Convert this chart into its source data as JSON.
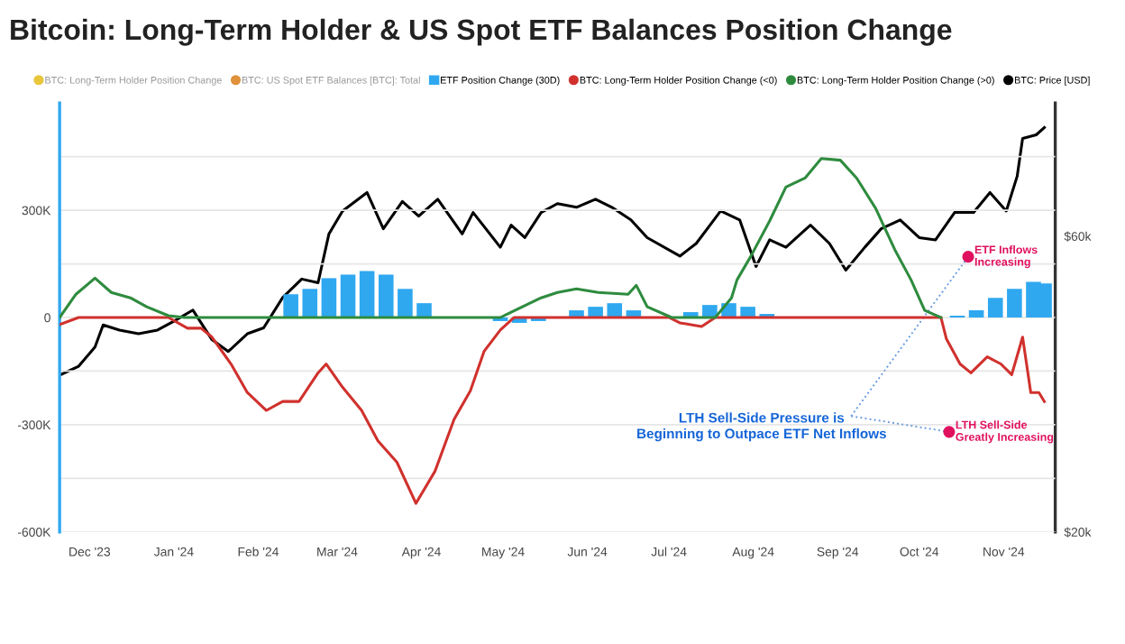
{
  "chart_data": {
    "type": "line",
    "title": "Bitcoin: Long-Term Holder & US Spot ETF Balances Position Change",
    "xlim": [
      "2023-11-20",
      "2024-11-20"
    ],
    "xticks": [
      {
        "value": "2023-12-01",
        "label": "Dec '23"
      },
      {
        "value": "2024-01-01",
        "label": "Jan '24"
      },
      {
        "value": "2024-02-01",
        "label": "Feb '24"
      },
      {
        "value": "2024-03-01",
        "label": "Mar '24"
      },
      {
        "value": "2024-04-01",
        "label": "Apr '24"
      },
      {
        "value": "2024-05-01",
        "label": "May '24"
      },
      {
        "value": "2024-06-01",
        "label": "Jun '24"
      },
      {
        "value": "2024-07-01",
        "label": "Jul '24"
      },
      {
        "value": "2024-08-01",
        "label": "Aug '24"
      },
      {
        "value": "2024-09-01",
        "label": "Sep '24"
      },
      {
        "value": "2024-10-01",
        "label": "Oct '24"
      },
      {
        "value": "2024-11-01",
        "label": "Nov '24"
      }
    ],
    "ylim": [
      -600000,
      600000
    ],
    "yticks": [
      {
        "value": -600000,
        "label": "-600K"
      },
      {
        "value": -450000,
        "label": null
      },
      {
        "value": -300000,
        "label": "-300K"
      },
      {
        "value": -150000,
        "label": null
      },
      {
        "value": 0,
        "label": "0"
      },
      {
        "value": 150000,
        "label": null
      },
      {
        "value": 300000,
        "label": "300K"
      },
      {
        "value": 450000,
        "label": null
      }
    ],
    "y2lim": [
      20000,
      78000
    ],
    "y2ticks": [
      {
        "value": 20000,
        "label": "$20k"
      },
      {
        "value": 60000,
        "label": "$60k"
      }
    ],
    "grid": "y",
    "legend": "top",
    "series": [
      {
        "name": "BTC: Long-Term Holder Position Change",
        "color": "#e8c53a"
      },
      {
        "name": "BTC: US Spot ETF Balances [BTC]: Total",
        "color": "#e0913a"
      },
      {
        "name": "ETF Position Change (30D)",
        "type": "bar",
        "color": "#2fa8f0",
        "x": [
          "2024-02-13",
          "2024-02-20",
          "2024-02-27",
          "2024-03-05",
          "2024-03-12",
          "2024-03-19",
          "2024-03-26",
          "2024-04-02",
          "2024-04-09",
          "2024-04-16",
          "2024-04-23",
          "2024-04-30",
          "2024-05-07",
          "2024-05-14",
          "2024-05-21",
          "2024-05-28",
          "2024-06-04",
          "2024-06-11",
          "2024-06-18",
          "2024-06-25",
          "2024-07-02",
          "2024-07-09",
          "2024-07-16",
          "2024-07-23",
          "2024-07-30",
          "2024-08-06",
          "2024-08-13",
          "2024-08-20",
          "2024-08-27",
          "2024-09-03",
          "2024-09-10",
          "2024-09-17",
          "2024-09-24",
          "2024-10-01",
          "2024-10-08",
          "2024-10-15",
          "2024-10-22",
          "2024-10-29",
          "2024-11-05",
          "2024-11-12",
          "2024-11-16"
        ],
        "values": [
          65000,
          80000,
          110000,
          120000,
          130000,
          120000,
          80000,
          40000,
          null,
          null,
          null,
          -10000,
          -15000,
          -10000,
          null,
          20000,
          30000,
          40000,
          20000,
          null,
          null,
          15000,
          35000,
          40000,
          30000,
          10000,
          null,
          null,
          null,
          null,
          null,
          null,
          null,
          null,
          null,
          5000,
          20000,
          55000,
          80000,
          100000,
          95000
        ]
      },
      {
        "name": "BTC: Long-Term Holder Position Change (<0)",
        "color": "#d0312d",
        "x": [
          "2023-11-20",
          "2023-11-27",
          "2023-12-30",
          "2024-01-06",
          "2024-01-11",
          "2024-01-15",
          "2024-01-22",
          "2024-01-28",
          "2024-02-04",
          "2024-02-10",
          "2024-02-16",
          "2024-02-23",
          "2024-02-26",
          "2024-03-03",
          "2024-03-10",
          "2024-03-16",
          "2024-03-23",
          "2024-03-30",
          "2024-04-06",
          "2024-04-13",
          "2024-04-19",
          "2024-04-24",
          "2024-04-30",
          "2024-05-05",
          "2024-07-01",
          "2024-07-05",
          "2024-07-13",
          "2024-07-18",
          "2024-10-09",
          "2024-10-11",
          "2024-10-16",
          "2024-10-20",
          "2024-10-26",
          "2024-10-31",
          "2024-11-04",
          "2024-11-08",
          "2024-11-11",
          "2024-11-14",
          "2024-11-16"
        ],
        "values": [
          -20000,
          0,
          0,
          -30000,
          -30000,
          -55000,
          -130000,
          -210000,
          -260000,
          -235000,
          -235000,
          -155000,
          -130000,
          -195000,
          -260000,
          -345000,
          -405000,
          -520000,
          -430000,
          -285000,
          -205000,
          -95000,
          -35000,
          0,
          0,
          -15000,
          -25000,
          0,
          0,
          -60000,
          -130000,
          -155000,
          -110000,
          -130000,
          -160000,
          -55000,
          -210000,
          -210000,
          -235000
        ]
      },
      {
        "name": "BTC: Long-Term Holder Position Change (>0)",
        "color": "#2e8b3e",
        "x": [
          "2023-11-20",
          "2023-11-26",
          "2023-12-03",
          "2023-12-09",
          "2023-12-16",
          "2023-12-22",
          "2023-12-30",
          "2024-01-05",
          "2024-04-30",
          "2024-05-04",
          "2024-05-15",
          "2024-05-21",
          "2024-05-28",
          "2024-06-05",
          "2024-06-16",
          "2024-06-19",
          "2024-06-23",
          "2024-07-02",
          "2024-07-18",
          "2024-07-24",
          "2024-07-26",
          "2024-07-31",
          "2024-08-07",
          "2024-08-13",
          "2024-08-20",
          "2024-08-26",
          "2024-09-02",
          "2024-09-08",
          "2024-09-15",
          "2024-09-22",
          "2024-09-28",
          "2024-10-03",
          "2024-10-09"
        ],
        "values": [
          0,
          65000,
          110000,
          70000,
          55000,
          30000,
          5000,
          0,
          0,
          15000,
          55000,
          70000,
          80000,
          70000,
          65000,
          90000,
          30000,
          0,
          0,
          55000,
          105000,
          170000,
          270000,
          365000,
          390000,
          445000,
          440000,
          390000,
          305000,
          190000,
          105000,
          20000,
          0
        ]
      },
      {
        "name": "BTC: Price [USD]",
        "color": "#000000",
        "axis": "y2",
        "x": [
          "2023-11-20",
          "2023-11-27",
          "2023-12-03",
          "2023-12-06",
          "2023-12-12",
          "2023-12-19",
          "2023-12-26",
          "2024-01-01",
          "2024-01-08",
          "2024-01-15",
          "2024-01-21",
          "2024-01-28",
          "2024-02-03",
          "2024-02-10",
          "2024-02-17",
          "2024-02-23",
          "2024-02-27",
          "2024-03-03",
          "2024-03-12",
          "2024-03-18",
          "2024-03-25",
          "2024-03-31",
          "2024-04-07",
          "2024-04-16",
          "2024-04-20",
          "2024-04-30",
          "2024-05-04",
          "2024-05-09",
          "2024-05-15",
          "2024-05-21",
          "2024-05-28",
          "2024-06-04",
          "2024-06-10",
          "2024-06-17",
          "2024-06-23",
          "2024-07-05",
          "2024-07-11",
          "2024-07-20",
          "2024-07-27",
          "2024-08-02",
          "2024-08-07",
          "2024-08-13",
          "2024-08-22",
          "2024-08-29",
          "2024-09-04",
          "2024-09-11",
          "2024-09-17",
          "2024-09-24",
          "2024-10-01",
          "2024-10-07",
          "2024-10-14",
          "2024-10-21",
          "2024-10-27",
          "2024-11-02",
          "2024-11-06",
          "2024-11-08",
          "2024-11-13",
          "2024-11-16"
        ],
        "values": [
          41200,
          42400,
          45000,
          48000,
          47300,
          46800,
          47300,
          48500,
          50000,
          46000,
          44400,
          46800,
          47600,
          51700,
          54200,
          53700,
          60300,
          63400,
          65900,
          61000,
          64700,
          62700,
          65000,
          60300,
          63200,
          58500,
          61500,
          59800,
          63200,
          64400,
          63900,
          65000,
          63900,
          62200,
          59800,
          57300,
          59000,
          63400,
          62200,
          55900,
          59500,
          58500,
          61500,
          59000,
          55400,
          58500,
          61000,
          62200,
          59800,
          59500,
          63200,
          63200,
          65900,
          63400,
          68100,
          73200,
          73700,
          74700
        ]
      }
    ],
    "annotations": [
      {
        "text": "ETF Inflows\nIncreasing",
        "x": "2024-10-19",
        "y": 170000
      },
      {
        "text": "LTH Sell-Side\nGreatly Increasing",
        "x": "2024-10-12",
        "y": -320000
      },
      "LTH Sell-Side Pressure is\nBeginning to Outpace ETF Net Inflows"
    ]
  }
}
